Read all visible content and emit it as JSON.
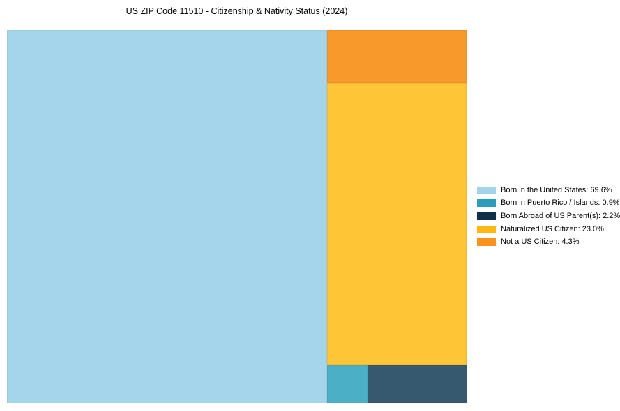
{
  "chart_data": {
    "type": "treemap",
    "title": "US ZIP Code 11510 - Citizenship & Nativity Status (2024)",
    "unit": "%",
    "total": 100.0,
    "legend_position": "right",
    "series": [
      {
        "slug": "born-us",
        "name": "Born in the United States",
        "value": 69.6,
        "legend_label": "Born in the United States: 69.6%",
        "fill": "#a5d5eb",
        "legend_color": "#a5d4e8"
      },
      {
        "slug": "born-pr",
        "name": "Born in Puerto Rico / Islands",
        "value": 0.9,
        "legend_label": "Born in Puerto Rico / Islands: 0.9%",
        "fill": "#4bb0c6",
        "legend_color": "#2b9cb9"
      },
      {
        "slug": "born-abroad",
        "name": "Born Abroad of US Parent(s)",
        "value": 2.2,
        "legend_label": "Born Abroad of US Parent(s): 2.2%",
        "fill": "#36596f",
        "legend_color": "#123149"
      },
      {
        "slug": "naturalized",
        "name": "Naturalized US Citizen",
        "value": 23.0,
        "legend_label": "Naturalized US Citizen: 23.0%",
        "fill": "#fec636",
        "legend_color": "#fdb813"
      },
      {
        "slug": "not-citizen",
        "name": "Not a US Citizen",
        "value": 4.3,
        "legend_label": "Not a US Citizen: 4.3%",
        "fill": "#f8992c",
        "legend_color": "#f8941d"
      }
    ]
  }
}
